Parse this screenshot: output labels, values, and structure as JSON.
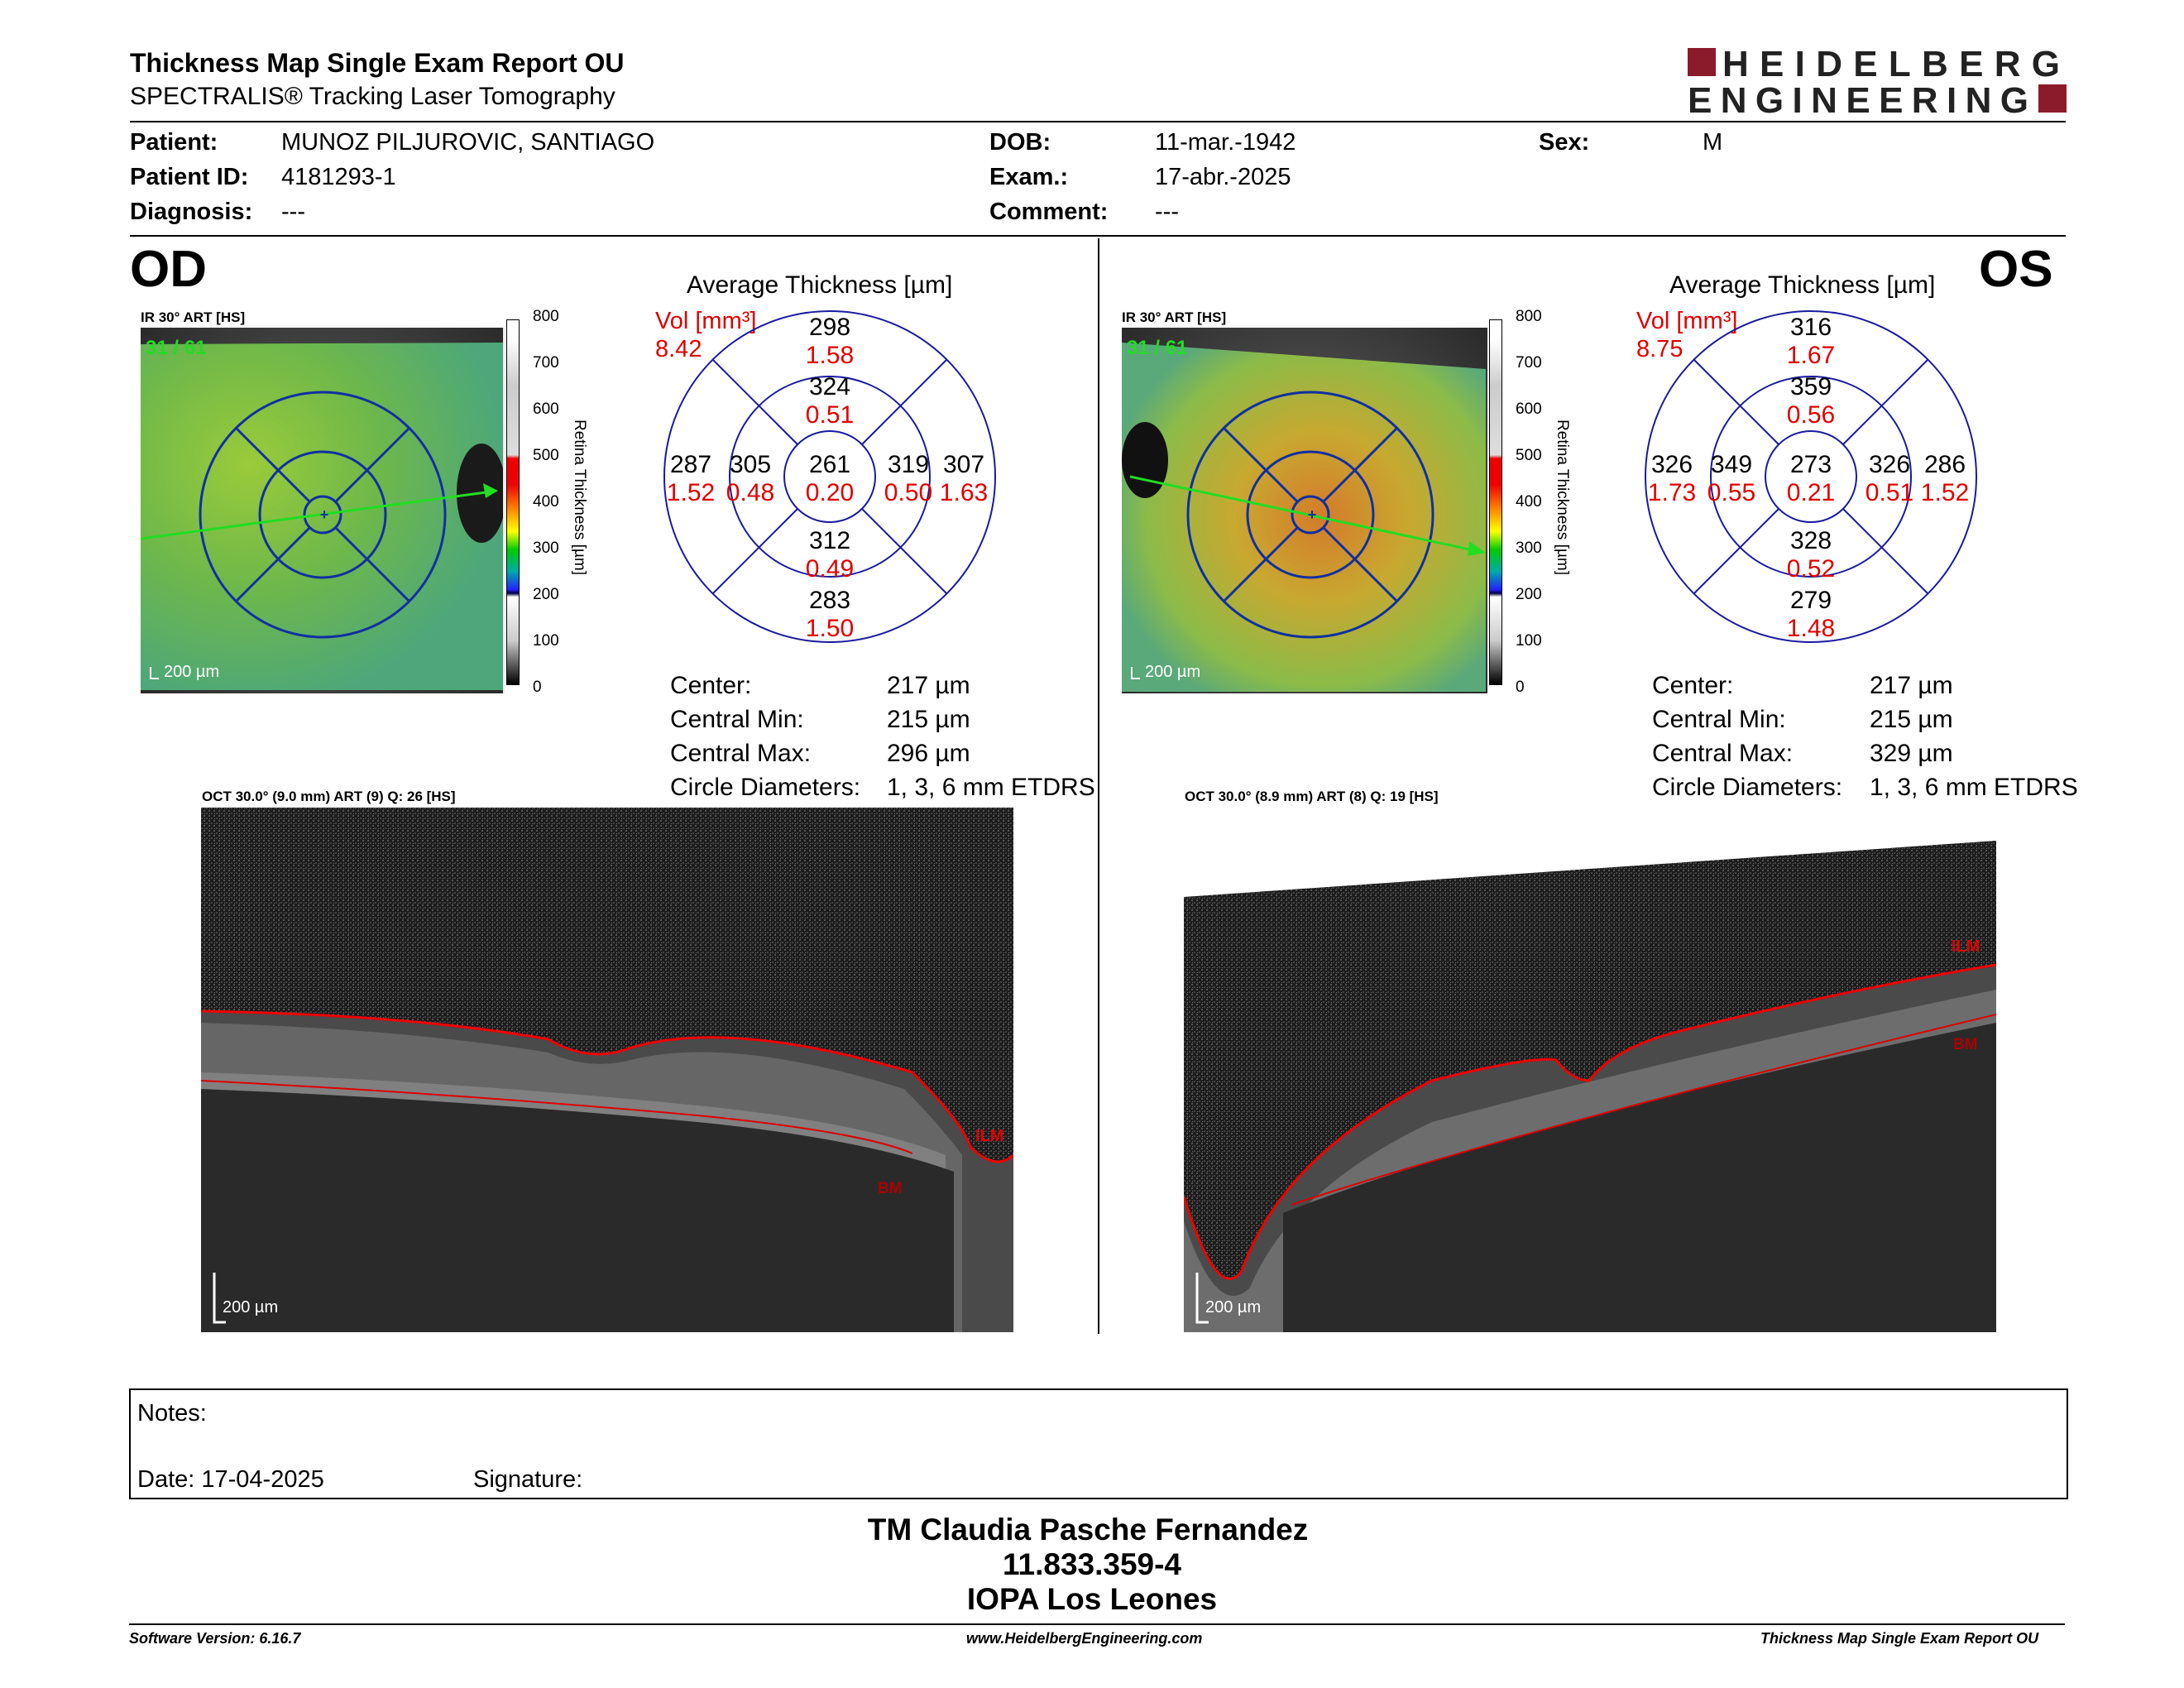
{
  "report": {
    "title": "Thickness Map Single Exam Report OU",
    "subtitle": "SPECTRALIS® Tracking Laser Tomography",
    "logo_line1": "HEIDELBERG",
    "logo_line2": "ENGINEERING"
  },
  "patient": {
    "patient_label": "Patient:",
    "patient_value": "MUNOZ PILJUROVIC, SANTIAGO",
    "id_label": "Patient ID:",
    "id_value": "4181293-1",
    "diag_label": "Diagnosis:",
    "diag_value": "---",
    "dob_label": "DOB:",
    "dob_value": "11-mar.-1942",
    "exam_label": "Exam.:",
    "exam_value": "17-abr.-2025",
    "comment_label": "Comment:",
    "comment_value": "---",
    "sex_label": "Sex:",
    "sex_value": "M"
  },
  "od": {
    "eye": "OD",
    "ir_label": "IR 30° ART [HS]",
    "frame": "31 / 61",
    "scale": "200 µm",
    "colorbar_ticks": [
      "800",
      "700",
      "600",
      "500",
      "400",
      "300",
      "200",
      "100",
      "0"
    ],
    "colorbar_title": "Retina Thickness [µm]",
    "avg_title": "Average Thickness [µm]",
    "vol_label": "Vol [mm³]",
    "vol_total": "8.42",
    "grid": {
      "center": {
        "t": "261",
        "v": "0.20"
      },
      "inner_top": {
        "t": "324",
        "v": "0.51"
      },
      "outer_top": {
        "t": "298",
        "v": "1.58"
      },
      "inner_nasal_left": {
        "t": "305",
        "v": "0.48"
      },
      "outer_left": {
        "t": "287",
        "v": "1.52"
      },
      "inner_right": {
        "t": "319",
        "v": "0.50"
      },
      "outer_right": {
        "t": "307",
        "v": "1.63"
      },
      "inner_bottom": {
        "t": "312",
        "v": "0.49"
      },
      "outer_bottom": {
        "t": "283",
        "v": "1.50"
      }
    },
    "stats": {
      "center_label": "Center:",
      "center_value": "217 µm",
      "min_label": "Central Min:",
      "min_value": "215 µm",
      "max_label": "Central Max:",
      "max_value": "296 µm",
      "diam_label": "Circle Diameters:",
      "diam_value": "1, 3, 6 mm ETDRS"
    },
    "oct_label": "OCT 30.0° (9.0 mm) ART (9) Q: 26 [HS]",
    "oct_scale": "200 µm",
    "ilm": "ILM",
    "bm": "BM"
  },
  "os": {
    "eye": "OS",
    "ir_label": "IR 30° ART [HS]",
    "frame": "31 / 61",
    "scale": "200 µm",
    "colorbar_ticks": [
      "800",
      "700",
      "600",
      "500",
      "400",
      "300",
      "200",
      "100",
      "0"
    ],
    "colorbar_title": "Retina Thickness [µm]",
    "avg_title": "Average Thickness [µm]",
    "vol_label": "Vol [mm³]",
    "vol_total": "8.75",
    "grid": {
      "center": {
        "t": "273",
        "v": "0.21"
      },
      "inner_top": {
        "t": "359",
        "v": "0.56"
      },
      "outer_top": {
        "t": "316",
        "v": "1.67"
      },
      "inner_nasal_left": {
        "t": "349",
        "v": "0.55"
      },
      "outer_left": {
        "t": "326",
        "v": "1.73"
      },
      "inner_right": {
        "t": "326",
        "v": "0.51"
      },
      "outer_right": {
        "t": "286",
        "v": "1.52"
      },
      "inner_bottom": {
        "t": "328",
        "v": "0.52"
      },
      "outer_bottom": {
        "t": "279",
        "v": "1.48"
      }
    },
    "stats": {
      "center_label": "Center:",
      "center_value": "217 µm",
      "min_label": "Central Min:",
      "min_value": "215 µm",
      "max_label": "Central Max:",
      "max_value": "329 µm",
      "diam_label": "Circle Diameters:",
      "diam_value": "1, 3, 6 mm ETDRS"
    },
    "oct_label": "OCT 30.0° (8.9 mm) ART (8) Q: 19 [HS]",
    "oct_scale": "200 µm",
    "ilm": "ILM",
    "bm": "BM"
  },
  "notes": {
    "notes_label": "Notes:",
    "date_label": "Date: 17-04-2025",
    "signature_label": "Signature:"
  },
  "signer": {
    "name": "TM Claudia Pasche Fernandez",
    "rut": "11.833.359-4",
    "place": "IOPA Los Leones"
  },
  "footer": {
    "software": "Software Version: 6.16.7",
    "website": "www.HeidelbergEngineering.com",
    "report": "Thickness Map Single Exam Report OU"
  }
}
